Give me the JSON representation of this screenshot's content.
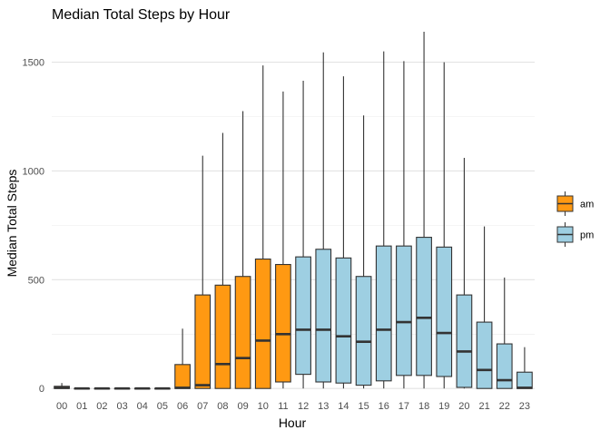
{
  "chart_data": {
    "type": "boxplot",
    "title": "Median Total Steps by Hour",
    "xlabel": "Hour",
    "ylabel": "Median Total Steps",
    "ylim": [
      -20,
      1640
    ],
    "yticks": [
      0,
      500,
      1000,
      1500
    ],
    "ytick_labels": [
      "0",
      "500",
      "1000",
      "1500"
    ],
    "grid": true,
    "legend_position": "right",
    "legend": [
      {
        "key": "am",
        "label": "am",
        "color": "#FF9912"
      },
      {
        "key": "pm",
        "label": "pm",
        "color": "#9ECFE2"
      }
    ],
    "categories": [
      "00",
      "01",
      "02",
      "03",
      "04",
      "05",
      "06",
      "07",
      "08",
      "09",
      "10",
      "11",
      "12",
      "13",
      "14",
      "15",
      "16",
      "17",
      "18",
      "19",
      "20",
      "21",
      "22",
      "23"
    ],
    "boxes": [
      {
        "x": "00",
        "group": "am",
        "min": 0,
        "q1": 0,
        "median": 3,
        "q3": 10,
        "max": 25
      },
      {
        "x": "01",
        "group": "am",
        "min": 0,
        "q1": 0,
        "median": 0,
        "q3": 0,
        "max": 0
      },
      {
        "x": "02",
        "group": "am",
        "min": 0,
        "q1": 0,
        "median": 0,
        "q3": 0,
        "max": 0
      },
      {
        "x": "03",
        "group": "am",
        "min": 0,
        "q1": 0,
        "median": 0,
        "q3": 0,
        "max": 0
      },
      {
        "x": "04",
        "group": "am",
        "min": 0,
        "q1": 0,
        "median": 0,
        "q3": 0,
        "max": 0
      },
      {
        "x": "05",
        "group": "am",
        "min": 0,
        "q1": 0,
        "median": 0,
        "q3": 0,
        "max": 0
      },
      {
        "x": "06",
        "group": "am",
        "min": 0,
        "q1": 0,
        "median": 3,
        "q3": 110,
        "max": 275
      },
      {
        "x": "07",
        "group": "am",
        "min": 0,
        "q1": 0,
        "median": 15,
        "q3": 430,
        "max": 1070
      },
      {
        "x": "08",
        "group": "am",
        "min": 0,
        "q1": 0,
        "median": 112,
        "q3": 475,
        "max": 1175
      },
      {
        "x": "09",
        "group": "am",
        "min": 0,
        "q1": 0,
        "median": 140,
        "q3": 515,
        "max": 1275
      },
      {
        "x": "10",
        "group": "am",
        "min": 0,
        "q1": 0,
        "median": 220,
        "q3": 595,
        "max": 1485
      },
      {
        "x": "11",
        "group": "am",
        "min": 0,
        "q1": 30,
        "median": 250,
        "q3": 570,
        "max": 1365
      },
      {
        "x": "12",
        "group": "pm",
        "min": 0,
        "q1": 65,
        "median": 270,
        "q3": 605,
        "max": 1415
      },
      {
        "x": "13",
        "group": "pm",
        "min": 0,
        "q1": 30,
        "median": 270,
        "q3": 640,
        "max": 1545
      },
      {
        "x": "14",
        "group": "pm",
        "min": 0,
        "q1": 25,
        "median": 240,
        "q3": 600,
        "max": 1435
      },
      {
        "x": "15",
        "group": "pm",
        "min": 0,
        "q1": 15,
        "median": 215,
        "q3": 515,
        "max": 1255
      },
      {
        "x": "16",
        "group": "pm",
        "min": 0,
        "q1": 35,
        "median": 270,
        "q3": 655,
        "max": 1550
      },
      {
        "x": "17",
        "group": "pm",
        "min": 0,
        "q1": 60,
        "median": 305,
        "q3": 655,
        "max": 1505
      },
      {
        "x": "18",
        "group": "pm",
        "min": 0,
        "q1": 60,
        "median": 325,
        "q3": 695,
        "max": 1640
      },
      {
        "x": "19",
        "group": "pm",
        "min": 0,
        "q1": 55,
        "median": 255,
        "q3": 650,
        "max": 1500
      },
      {
        "x": "20",
        "group": "pm",
        "min": 0,
        "q1": 5,
        "median": 170,
        "q3": 430,
        "max": 1060
      },
      {
        "x": "21",
        "group": "pm",
        "min": 0,
        "q1": 0,
        "median": 85,
        "q3": 305,
        "max": 745
      },
      {
        "x": "22",
        "group": "pm",
        "min": 0,
        "q1": 0,
        "median": 38,
        "q3": 205,
        "max": 510
      },
      {
        "x": "23",
        "group": "pm",
        "min": 0,
        "q1": 0,
        "median": 3,
        "q3": 75,
        "max": 190
      }
    ]
  }
}
